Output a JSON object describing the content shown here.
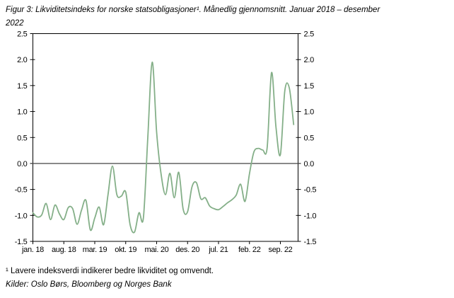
{
  "figure": {
    "title_line1": "Figur 3: Likviditetsindeks for norske statsobligasjoner¹. Månedlig gjennomsnitt. Januar 2018 – desember",
    "title_line2": "2022",
    "footnote": "¹ Lavere indeksverdi indikerer bedre likviditet og omvendt.",
    "source": "Kilder: Oslo Børs, Bloomberg og Norges Bank"
  },
  "chart_data": {
    "type": "line",
    "title": "Figur 3: Likviditetsindeks for norske statsobligasjoner. Månedlig gjennomsnitt. Januar 2018 – desember 2022",
    "xlabel": "",
    "ylabel": "",
    "ylim": [
      -1.5,
      2.5
    ],
    "y_step": 0.5,
    "y_tick_labels": [
      "2.5",
      "2.0",
      "1.5",
      "1.0",
      "0.5",
      "0.0",
      "-0.5",
      "-1.0",
      "-1.5"
    ],
    "y_axis_sides": "both",
    "grid": false,
    "zero_line": true,
    "legend": "none",
    "x_tick_labels": [
      "jan. 18",
      "aug. 18",
      "mar. 19",
      "okt. 19",
      "mai. 20",
      "des. 20",
      "jul. 21",
      "feb. 22",
      "sep. 22"
    ],
    "x_tick_month_indices": [
      0,
      7,
      14,
      21,
      28,
      35,
      42,
      49,
      56
    ],
    "x_months": [
      "jan. 18",
      "feb. 18",
      "mar. 18",
      "apr. 18",
      "mai. 18",
      "jun. 18",
      "jul. 18",
      "aug. 18",
      "sep. 18",
      "okt. 18",
      "nov. 18",
      "des. 18",
      "jan. 19",
      "feb. 19",
      "mar. 19",
      "apr. 19",
      "mai. 19",
      "jun. 19",
      "jul. 19",
      "aug. 19",
      "sep. 19",
      "okt. 19",
      "nov. 19",
      "des. 19",
      "jan. 20",
      "feb. 20",
      "mar. 20",
      "apr. 20",
      "mai. 20",
      "jun. 20",
      "jul. 20",
      "aug. 20",
      "sep. 20",
      "okt. 20",
      "nov. 20",
      "des. 20",
      "jan. 21",
      "feb. 21",
      "mar. 21",
      "apr. 21",
      "mai. 21",
      "jun. 21",
      "jul. 21",
      "aug. 21",
      "sep. 21",
      "okt. 21",
      "nov. 21",
      "des. 21",
      "jan. 22",
      "feb. 22",
      "mar. 22",
      "apr. 22",
      "mai. 22",
      "jun. 22",
      "jul. 22",
      "aug. 22",
      "sep. 22",
      "okt. 22",
      "nov. 22",
      "des. 22"
    ],
    "series": [
      {
        "name": "Likviditetsindeks for norske statsobligasjoner",
        "values": [
          -0.95,
          -1.03,
          -0.99,
          -0.77,
          -1.08,
          -0.8,
          -0.97,
          -1.08,
          -0.85,
          -0.87,
          -1.17,
          -0.9,
          -0.71,
          -1.28,
          -1.05,
          -0.84,
          -1.18,
          -0.6,
          -0.05,
          -0.6,
          -0.63,
          -0.55,
          -1.18,
          -1.32,
          -0.95,
          -1.05,
          0.5,
          1.95,
          0.6,
          -0.2,
          -0.6,
          -0.19,
          -0.66,
          -0.17,
          -0.88,
          -0.93,
          -0.45,
          -0.37,
          -0.68,
          -0.66,
          -0.82,
          -0.87,
          -0.89,
          -0.83,
          -0.76,
          -0.7,
          -0.61,
          -0.4,
          -0.73,
          -0.2,
          0.22,
          0.29,
          0.26,
          0.3,
          1.75,
          0.7,
          0.17,
          1.4,
          1.46,
          0.75
        ]
      }
    ],
    "colors": {
      "line": "#84af88",
      "zero_line": "#6e6e6e",
      "frame": "#000000",
      "text": "#000000",
      "background": "#ffffff"
    }
  }
}
